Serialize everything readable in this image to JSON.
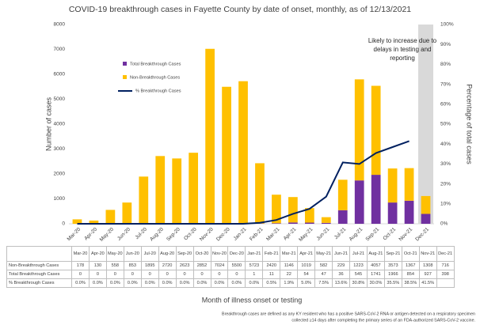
{
  "chart_data": {
    "type": "bar-line",
    "title": "COVID-19 breakthrough cases in Fayette County by date of onset, monthly, as of 12/13/2021",
    "categories": [
      "Mar-20",
      "Apr-20",
      "May-20",
      "Jun-20",
      "Jul-20",
      "Aug-20",
      "Sep-20",
      "Oct-20",
      "Nov-20",
      "Dec-20",
      "Jan-21",
      "Feb-21",
      "Mar-21",
      "Apr-21",
      "May-21",
      "Jun-21",
      "Jul-21",
      "Aug-21",
      "Sep-21",
      "Oct-21",
      "Nov-21",
      "Dec-21"
    ],
    "series": [
      {
        "name": "Total Breakthrough Cases",
        "color": "#7030a0",
        "type": "bar",
        "values": [
          0,
          0,
          0,
          0,
          0,
          0,
          0,
          0,
          0,
          0,
          1,
          11,
          22,
          54,
          47,
          36,
          545,
          1741,
          1966,
          854,
          927,
          398
        ]
      },
      {
        "name": "Non-Breakthrough Cases",
        "color": "#ffc000",
        "type": "bar",
        "values": [
          178,
          130,
          558,
          853,
          1895,
          2720,
          2623,
          2852,
          7024,
          5500,
          5723,
          2420,
          1146,
          1019,
          582,
          229,
          1223,
          4057,
          3573,
          1367,
          1308,
          716
        ]
      },
      {
        "name": "% Breakthrough Cases",
        "color": "#002060",
        "type": "line",
        "axis": "y2",
        "values": [
          0,
          0,
          0,
          0,
          0,
          0,
          0,
          0,
          0,
          0,
          0,
          0.5,
          1.9,
          5.0,
          7.5,
          13.6,
          30.8,
          30.0,
          35.5,
          38.5,
          41.5,
          null
        ],
        "value_labels": [
          "0.0%",
          "0.0%",
          "0.0%",
          "0.0%",
          "0.0%",
          "0.0%",
          "0.0%",
          "0.0%",
          "0.0%",
          "0.0%",
          "0.0%",
          "0.5%",
          "1.9%",
          "5.0%",
          "7.5%",
          "13.6%",
          "30.8%",
          "30.0%",
          "35.5%",
          "38.5%",
          "41.5%",
          null
        ]
      }
    ],
    "ylim": [
      0,
      8000
    ],
    "yticks": [
      0,
      1000,
      2000,
      3000,
      4000,
      5000,
      6000,
      7000,
      8000
    ],
    "y2lim": [
      0,
      100
    ],
    "y2ticks": [
      {
        "value": 0,
        "label": "0%"
      },
      {
        "value": 10,
        "label": "10%"
      },
      {
        "value": 20,
        "label": "20%"
      },
      {
        "value": 30,
        "label": "30%"
      },
      {
        "value": 40,
        "label": "40%"
      },
      {
        "value": 50,
        "label": "50%"
      },
      {
        "value": 60,
        "label": "60%"
      },
      {
        "value": 70,
        "label": "70%"
      },
      {
        "value": 80,
        "label": "80%"
      },
      {
        "value": 90,
        "label": "90%"
      },
      {
        "value": 100,
        "label": "100%"
      }
    ],
    "ylabel": "Number of cases",
    "y2label": "Percentage of total cases",
    "xlabel": "Month of illness onset or testing",
    "annotation": [
      "Likely to increase due to",
      "delays in testing and",
      "reporting"
    ],
    "footnote": [
      "Breakthrough cases are defined as any KY resident who has a positive SARS-CoV-2 RNA or antigen detected on a respiratory specimen",
      "collected ≥14 days after completing the primary series of an FDA-authorized SARS-CoV-2 vaccine."
    ],
    "grid": false,
    "legend": "upper left",
    "shaded_color": "#d9d9d9"
  }
}
